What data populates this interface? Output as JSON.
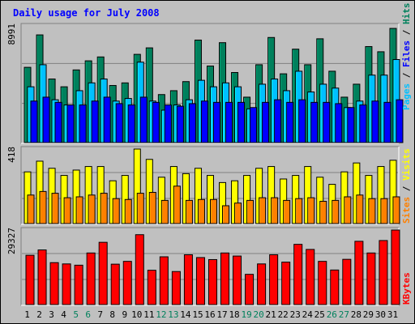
{
  "title": "Daily usage for July 2008",
  "colors": {
    "background": "#c0c0c0",
    "title": "#0000ff",
    "hits": "#00805c",
    "files": "#00c0ff",
    "pages": "#0000ff",
    "visits": "#ffff00",
    "sites": "#ff8000",
    "kbytes": "#ff0000",
    "weekend": "#00805c"
  },
  "chart_data": [
    {
      "type": "bar",
      "panel": "hits-files-pages",
      "y_max_label": "8991",
      "ylim": [
        0,
        8991
      ],
      "legend": [
        "Pages",
        "Files",
        "Hits"
      ],
      "categories": [
        "1",
        "2",
        "3",
        "4",
        "5",
        "6",
        "7",
        "8",
        "9",
        "10",
        "11",
        "12",
        "13",
        "14",
        "15",
        "16",
        "17",
        "18",
        "19",
        "20",
        "21",
        "22",
        "23",
        "24",
        "25",
        "26",
        "27",
        "28",
        "29",
        "30",
        "31"
      ],
      "series": [
        {
          "name": "Hits",
          "values": [
            5800,
            8300,
            4900,
            4300,
            5600,
            6300,
            6600,
            4400,
            4600,
            6800,
            7300,
            3700,
            4000,
            4700,
            7900,
            5900,
            7700,
            5400,
            3500,
            6000,
            8100,
            5300,
            7200,
            6000,
            8000,
            5500,
            3500,
            4500,
            7400,
            7000,
            8800
          ]
        },
        {
          "name": "Files",
          "values": [
            4300,
            6000,
            3300,
            2900,
            4000,
            4600,
            4900,
            3200,
            3400,
            6200,
            3200,
            2500,
            2900,
            3300,
            4800,
            4300,
            4600,
            4300,
            2600,
            4500,
            4900,
            4000,
            5500,
            3900,
            4500,
            4200,
            2700,
            3200,
            5200,
            5200,
            6400
          ]
        },
        {
          "name": "Pages",
          "values": [
            3200,
            3500,
            3100,
            2900,
            2900,
            3200,
            3500,
            3000,
            2900,
            3500,
            3100,
            2900,
            2800,
            3000,
            3200,
            3100,
            3100,
            3100,
            2700,
            3100,
            3300,
            3100,
            3300,
            3100,
            3100,
            3000,
            2700,
            2900,
            3200,
            3100,
            3300
          ]
        }
      ]
    },
    {
      "type": "bar",
      "panel": "visits-sites",
      "y_max_label": "418",
      "ylim": [
        0,
        418
      ],
      "legend": [
        "Sites",
        "Visits"
      ],
      "categories": [
        "1",
        "2",
        "3",
        "4",
        "5",
        "6",
        "7",
        "8",
        "9",
        "10",
        "11",
        "12",
        "13",
        "14",
        "15",
        "16",
        "17",
        "18",
        "19",
        "20",
        "21",
        "22",
        "23",
        "24",
        "25",
        "26",
        "27",
        "28",
        "29",
        "30",
        "31"
      ],
      "series": [
        {
          "name": "Visits",
          "values": [
            290,
            350,
            310,
            270,
            300,
            320,
            320,
            240,
            270,
            418,
            360,
            260,
            320,
            280,
            310,
            270,
            230,
            240,
            270,
            310,
            320,
            250,
            270,
            320,
            260,
            220,
            290,
            340,
            270,
            320,
            355
          ]
        },
        {
          "name": "Sites",
          "values": [
            160,
            180,
            170,
            145,
            150,
            160,
            170,
            140,
            135,
            170,
            175,
            130,
            210,
            130,
            135,
            135,
            100,
            115,
            130,
            145,
            145,
            130,
            140,
            145,
            125,
            130,
            150,
            160,
            140,
            140,
            150
          ]
        }
      ]
    },
    {
      "type": "bar",
      "panel": "kbytes",
      "y_max_label": "29327",
      "ylim": [
        0,
        29327
      ],
      "legend": [
        "KBytes"
      ],
      "categories": [
        "1",
        "2",
        "3",
        "4",
        "5",
        "6",
        "7",
        "8",
        "9",
        "10",
        "11",
        "12",
        "13",
        "14",
        "15",
        "16",
        "17",
        "18",
        "19",
        "20",
        "21",
        "22",
        "23",
        "24",
        "25",
        "26",
        "27",
        "28",
        "29",
        "30",
        "31"
      ],
      "series": [
        {
          "name": "KBytes",
          "values": [
            19400,
            21500,
            16500,
            16000,
            15500,
            20300,
            24500,
            15900,
            17000,
            27500,
            13500,
            18800,
            13000,
            19600,
            18500,
            17700,
            20300,
            19100,
            11900,
            16000,
            19600,
            16700,
            23700,
            21700,
            17000,
            13600,
            17800,
            24900,
            20300,
            25200,
            29327
          ]
        }
      ]
    }
  ],
  "x_labels": {
    "days": [
      "1",
      "2",
      "3",
      "4",
      "5",
      "6",
      "7",
      "8",
      "9",
      "10",
      "11",
      "12",
      "13",
      "14",
      "15",
      "16",
      "17",
      "18",
      "19",
      "20",
      "21",
      "22",
      "23",
      "24",
      "25",
      "26",
      "27",
      "28",
      "29",
      "30",
      "31"
    ],
    "weekend": [
      "5",
      "6",
      "12",
      "13",
      "19",
      "20",
      "26",
      "27"
    ]
  }
}
